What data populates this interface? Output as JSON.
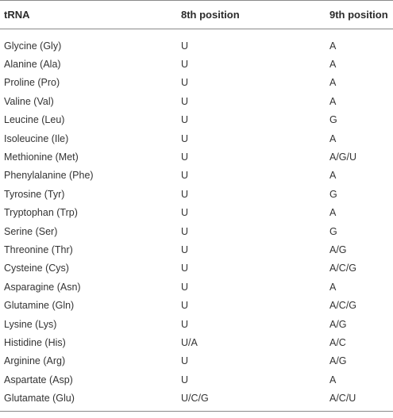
{
  "table": {
    "headers": [
      "tRNA",
      "8th position",
      "9th position"
    ],
    "rows": [
      [
        "Glycine (Gly)",
        "U",
        "A"
      ],
      [
        "Alanine (Ala)",
        "U",
        "A"
      ],
      [
        "Proline (Pro)",
        "U",
        "A"
      ],
      [
        "Valine (Val)",
        "U",
        "A"
      ],
      [
        "Leucine (Leu)",
        "U",
        "G"
      ],
      [
        "Isoleucine (Ile)",
        "U",
        "A"
      ],
      [
        "Methionine (Met)",
        "U",
        "A/G/U"
      ],
      [
        "Phenylalanine (Phe)",
        "U",
        "A"
      ],
      [
        "Tyrosine (Tyr)",
        "U",
        "G"
      ],
      [
        "Tryptophan (Trp)",
        "U",
        "A"
      ],
      [
        "Serine (Ser)",
        "U",
        "G"
      ],
      [
        "Threonine (Thr)",
        "U",
        "A/G"
      ],
      [
        "Cysteine (Cys)",
        "U",
        "A/C/G"
      ],
      [
        "Asparagine (Asn)",
        "U",
        "A"
      ],
      [
        "Glutamine (Gln)",
        "U",
        "A/C/G"
      ],
      [
        "Lysine (Lys)",
        "U",
        "A/G"
      ],
      [
        "Histidine (His)",
        "U/A",
        "A/C"
      ],
      [
        "Arginine (Arg)",
        "U",
        "A/G"
      ],
      [
        "Aspartate (Asp)",
        "U",
        "A"
      ],
      [
        "Glutamate (Glu)",
        "U/C/G",
        "A/C/U"
      ]
    ]
  }
}
